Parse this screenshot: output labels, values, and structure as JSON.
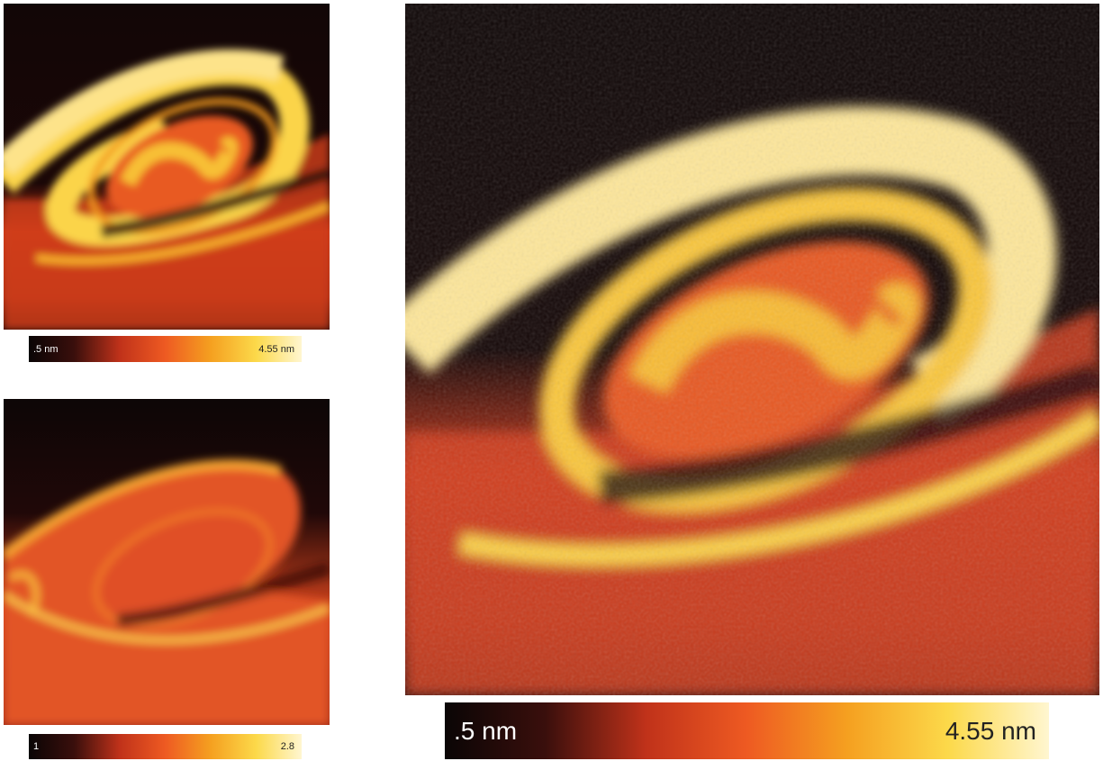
{
  "panels": [
    {
      "id": "p1",
      "colorbar": {
        "min_label": ".5 nm",
        "max_label": "4.55 nm"
      }
    },
    {
      "id": "p2",
      "colorbar": {
        "min_label": "1",
        "max_label": "2.8"
      }
    },
    {
      "id": "p3",
      "colorbar": {
        "min_label": ".5 nm",
        "max_label": "4.55 nm"
      }
    }
  ],
  "colormap": [
    "#0a0505",
    "#3a0f0c",
    "#c0321a",
    "#ee5a22",
    "#f5a020",
    "#fcd94a",
    "#fff6d0"
  ]
}
